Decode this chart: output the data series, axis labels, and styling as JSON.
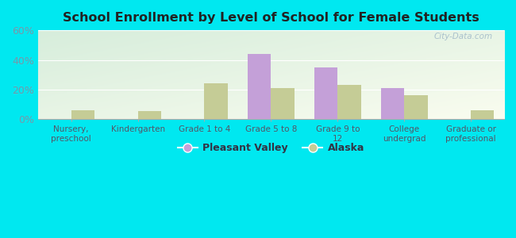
{
  "title": "School Enrollment by Level of School for Female Students",
  "categories": [
    "Nursery,\npreschool",
    "Kindergarten",
    "Grade 1 to 4",
    "Grade 5 to 8",
    "Grade 9 to\n12",
    "College\nundergrad",
    "Graduate or\nprofessional"
  ],
  "pleasant_valley": [
    0,
    0,
    0,
    44,
    35,
    21,
    0
  ],
  "alaska": [
    6,
    5.5,
    24,
    21,
    23,
    16,
    6
  ],
  "pleasant_valley_color": "#c4a0d8",
  "alaska_color": "#c5cc96",
  "background_color": "#00e8f0",
  "ylabel_color": "#7799aa",
  "title_color": "#222222",
  "ylim": [
    0,
    60
  ],
  "yticks": [
    0,
    20,
    40,
    60
  ],
  "bar_width": 0.35,
  "legend_labels": [
    "Pleasant Valley",
    "Alaska"
  ],
  "watermark": "City-Data.com"
}
